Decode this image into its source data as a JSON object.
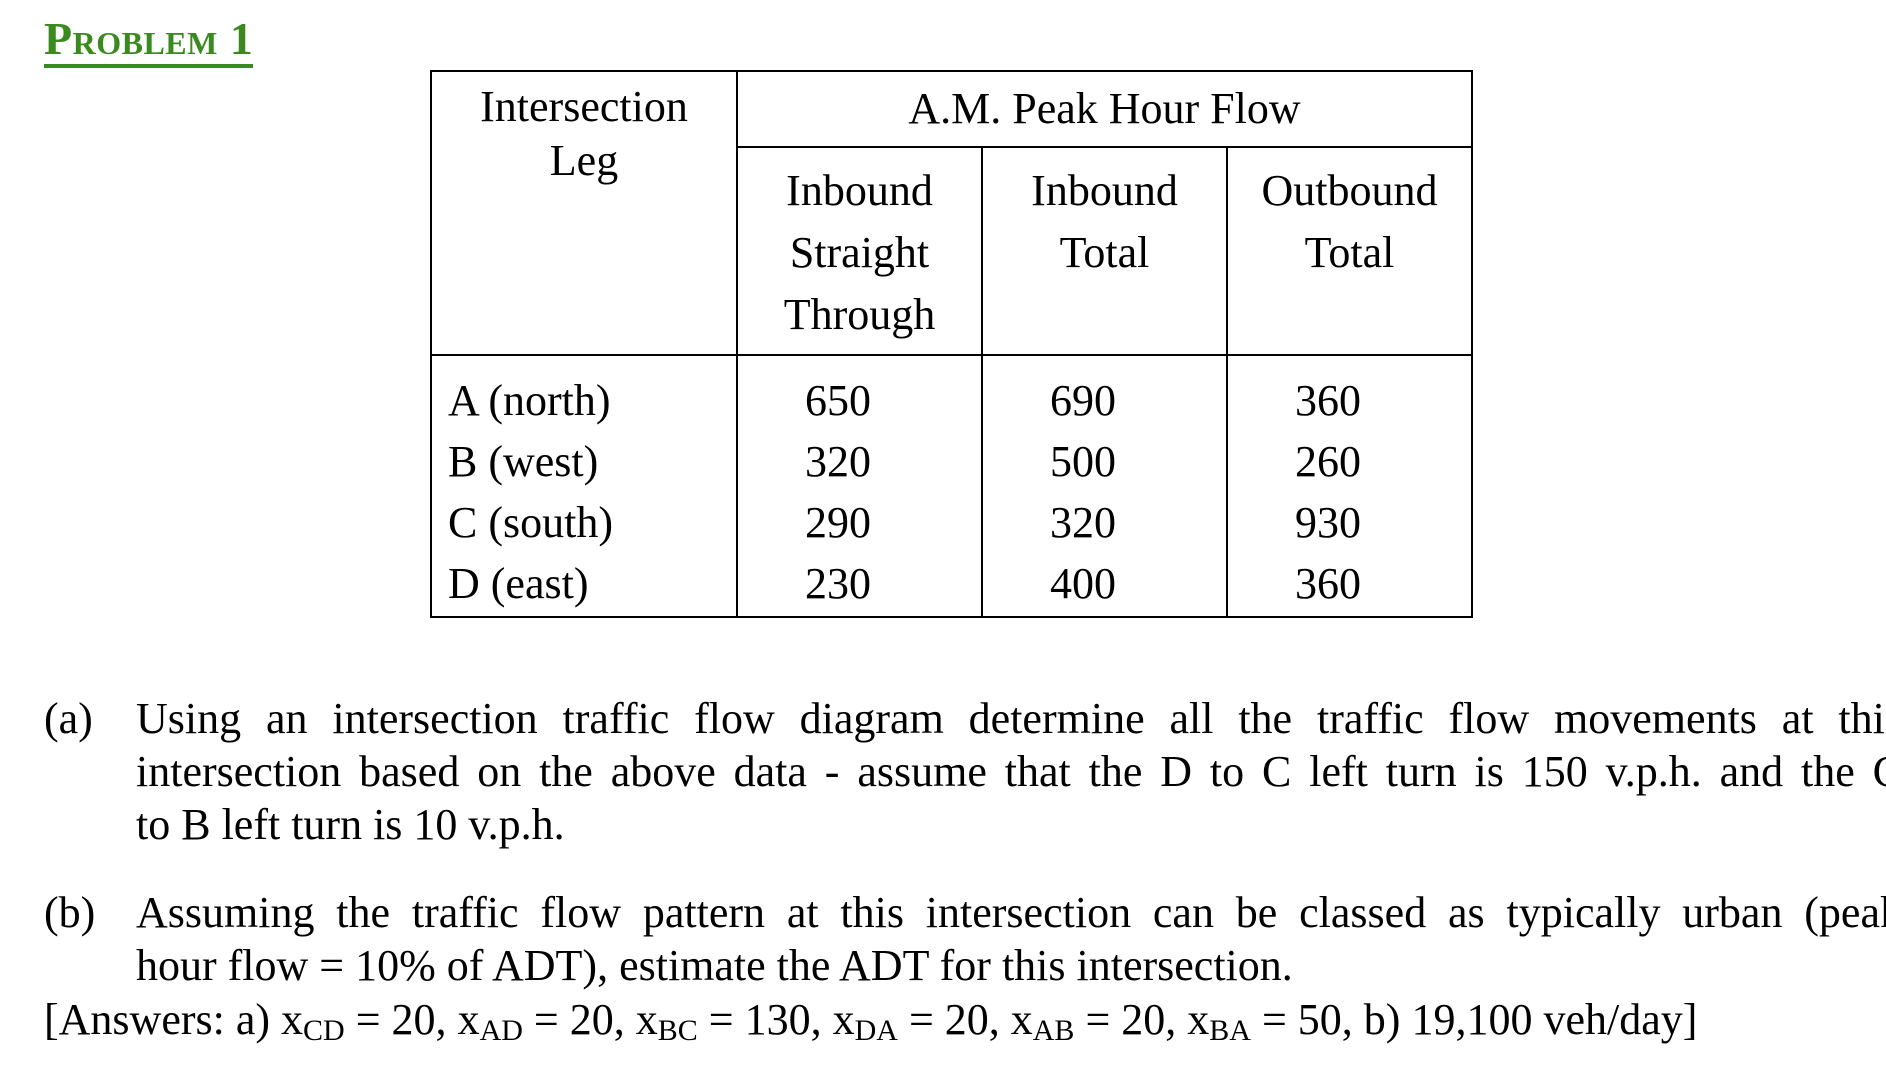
{
  "heading": "Problem 1",
  "table": {
    "leg_header_line1": "Intersection",
    "leg_header_line2": "Leg",
    "group_header": "A.M. Peak Hour Flow",
    "col1_header": [
      "Inbound",
      "Straight",
      "Through"
    ],
    "col2_header": [
      "Inbound",
      "Total"
    ],
    "col3_header": [
      "Outbound",
      "Total"
    ],
    "rows": [
      {
        "leg": "A (north)",
        "inbound_straight": "650",
        "inbound_total": "690",
        "outbound_total": "360"
      },
      {
        "leg": "B (west)",
        "inbound_straight": "320",
        "inbound_total": "500",
        "outbound_total": "260"
      },
      {
        "leg": "C (south)",
        "inbound_straight": "290",
        "inbound_total": "320",
        "outbound_total": "930"
      },
      {
        "leg": "D (east)",
        "inbound_straight": "230",
        "inbound_total": "400",
        "outbound_total": "360"
      }
    ]
  },
  "part_a": {
    "label": "(a)",
    "lines": [
      "Using an intersection traffic flow diagram determine all the traffic flow movements at this",
      "intersection based on the above data - assume that the D to C left turn is 150 v.p.h. and the C",
      "to B left turn is 10 v.p.h."
    ]
  },
  "part_b": {
    "label": "(b)",
    "lines": [
      "Assuming the traffic flow pattern at this intersection can be classed as typically urban (peak",
      "hour flow = 10% of ADT), estimate the ADT for this intersection."
    ]
  },
  "answers": {
    "prefix": "[Answers: a) ",
    "items": [
      {
        "var": "x",
        "sub": "CD",
        "value": " = 20,  "
      },
      {
        "var": "x",
        "sub": "AD",
        "value": " = 20,  "
      },
      {
        "var": "x",
        "sub": "BC",
        "value": " = 130,  "
      },
      {
        "var": "x",
        "sub": "DA",
        "value": " = 20,  "
      },
      {
        "var": "x",
        "sub": "AB",
        "value": " = 20,  "
      },
      {
        "var": "x",
        "sub": "BA",
        "value": " = 50,  "
      }
    ],
    "suffix": "b) 19,100 veh/day]"
  }
}
